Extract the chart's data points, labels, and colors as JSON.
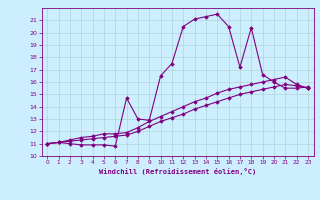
{
  "xlabel": "Windchill (Refroidissement éolien,°C)",
  "ylabel": "",
  "background_color": "#cceeff",
  "line_color": "#800080",
  "xlim": [
    -0.5,
    23.5
  ],
  "ylim": [
    10,
    22
  ],
  "yticks": [
    10,
    11,
    12,
    13,
    14,
    15,
    16,
    17,
    18,
    19,
    20,
    21
  ],
  "xticks": [
    0,
    1,
    2,
    3,
    4,
    5,
    6,
    7,
    8,
    9,
    10,
    11,
    12,
    13,
    14,
    15,
    16,
    17,
    18,
    19,
    20,
    21,
    22,
    23
  ],
  "line1_x": [
    0,
    1,
    2,
    3,
    4,
    5,
    6,
    7,
    8,
    9,
    10,
    11,
    12,
    13,
    14,
    15,
    16,
    17,
    18,
    19,
    20,
    21,
    22,
    23
  ],
  "line1_y": [
    11.0,
    11.1,
    11.0,
    10.9,
    10.9,
    10.9,
    10.8,
    14.7,
    13.0,
    12.9,
    16.5,
    17.5,
    20.5,
    21.1,
    21.3,
    21.5,
    20.5,
    17.2,
    20.4,
    16.6,
    16.0,
    15.5,
    15.5,
    15.6
  ],
  "line2_x": [
    0,
    1,
    2,
    3,
    4,
    5,
    6,
    7,
    8,
    9,
    10,
    11,
    12,
    13,
    14,
    15,
    16,
    17,
    18,
    19,
    20,
    21,
    22,
    23
  ],
  "line2_y": [
    11.0,
    11.1,
    11.3,
    11.5,
    11.6,
    11.8,
    11.8,
    11.9,
    12.3,
    12.8,
    13.2,
    13.6,
    14.0,
    14.4,
    14.7,
    15.1,
    15.4,
    15.6,
    15.8,
    16.0,
    16.2,
    16.4,
    15.8,
    15.5
  ],
  "line3_x": [
    0,
    1,
    2,
    3,
    4,
    5,
    6,
    7,
    8,
    9,
    10,
    11,
    12,
    13,
    14,
    15,
    16,
    17,
    18,
    19,
    20,
    21,
    22,
    23
  ],
  "line3_y": [
    11.0,
    11.1,
    11.2,
    11.3,
    11.4,
    11.5,
    11.6,
    11.7,
    12.0,
    12.4,
    12.8,
    13.1,
    13.4,
    13.8,
    14.1,
    14.4,
    14.7,
    15.0,
    15.2,
    15.4,
    15.6,
    15.8,
    15.7,
    15.5
  ],
  "grid_color": "#aacccc",
  "marker": "D",
  "markersize": 1.8,
  "linewidth": 0.8
}
